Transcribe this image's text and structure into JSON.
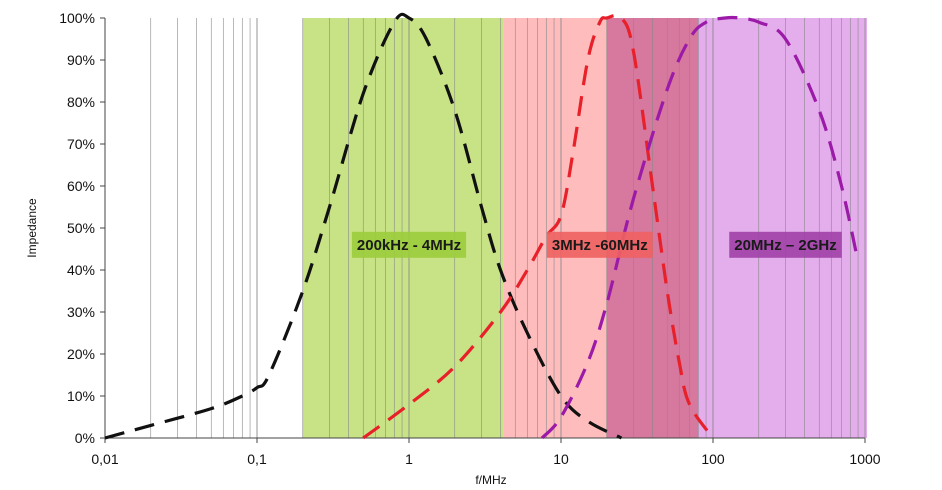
{
  "chart_data": {
    "type": "line",
    "title": "",
    "xlabel": "f/MHz",
    "ylabel": "Impedance",
    "xscale": "log",
    "xlim": [
      0.01,
      1000
    ],
    "ylim": [
      0,
      100
    ],
    "x_ticks": [
      0.01,
      0.1,
      1,
      10,
      100,
      1000
    ],
    "x_tick_labels": [
      "0,01",
      "0,1",
      "1",
      "10",
      "100",
      "1000"
    ],
    "y_ticks": [
      0,
      10,
      20,
      30,
      40,
      50,
      60,
      70,
      80,
      90,
      100
    ],
    "y_tick_labels": [
      "0%",
      "10%",
      "20%",
      "30%",
      "40%",
      "50%",
      "60%",
      "70%",
      "80%",
      "90%",
      "100%"
    ],
    "grid": "log-vertical",
    "bands": [
      {
        "label": "200kHz - 4MHz",
        "x_start": 0.2,
        "x_end": 4.2,
        "color": "#b5d95c",
        "opacity": 0.75,
        "label_color": "#9ccc3c",
        "label_x": 1.0,
        "label_y": 46
      },
      {
        "label": "3MHz -60MHz",
        "x_start": 4.2,
        "x_end": 20,
        "color": "#ff8f8f",
        "opacity": 0.6,
        "label_color": "#f06060",
        "label_x": 18,
        "label_y": 46
      },
      {
        "label": "",
        "x_start": 20,
        "x_end": 80,
        "color": "#c2306a",
        "opacity": 0.65,
        "label_color": "#c2306a",
        "label_x": 40,
        "label_y": 50
      },
      {
        "label": "20MHz – 2GHz",
        "x_start": 80,
        "x_end": 1050,
        "color": "#d98ae3",
        "opacity": 0.7,
        "label_color": "#a040a8",
        "label_x": 300,
        "label_y": 46
      }
    ],
    "series": [
      {
        "name": "200kHz - 4MHz",
        "color": "#111111",
        "style": "dashed",
        "x": [
          0.01,
          0.02,
          0.05,
          0.08,
          0.1,
          0.12,
          0.2,
          0.3,
          0.5,
          0.8,
          1.0,
          1.3,
          2.0,
          3.0,
          4.0,
          6.0,
          10,
          15,
          25
        ],
        "y": [
          0,
          3,
          7,
          10,
          12,
          15,
          35,
          55,
          82,
          99,
          100,
          95,
          78,
          55,
          40,
          25,
          10,
          4,
          0
        ]
      },
      {
        "name": "3MHz -60MHz",
        "color": "#e8202a",
        "style": "dashed",
        "x": [
          0.5,
          1,
          2,
          4,
          6,
          8,
          10,
          12,
          15,
          18,
          20,
          25,
          30,
          40,
          50,
          60,
          70,
          100
        ],
        "y": [
          0,
          8,
          17,
          30,
          40,
          48,
          53,
          68,
          90,
          99,
          100,
          100,
          92,
          60,
          35,
          18,
          8,
          0
        ]
      },
      {
        "name": "20MHz – 2GHz",
        "color": "#9b1aa8",
        "style": "dashed",
        "x": [
          7.5,
          10,
          15,
          20,
          30,
          50,
          70,
          90,
          120,
          150,
          200,
          300,
          500,
          700,
          900
        ],
        "y": [
          0,
          5,
          18,
          32,
          57,
          83,
          95,
          99,
          100,
          100,
          99,
          95,
          78,
          60,
          42
        ]
      }
    ]
  }
}
